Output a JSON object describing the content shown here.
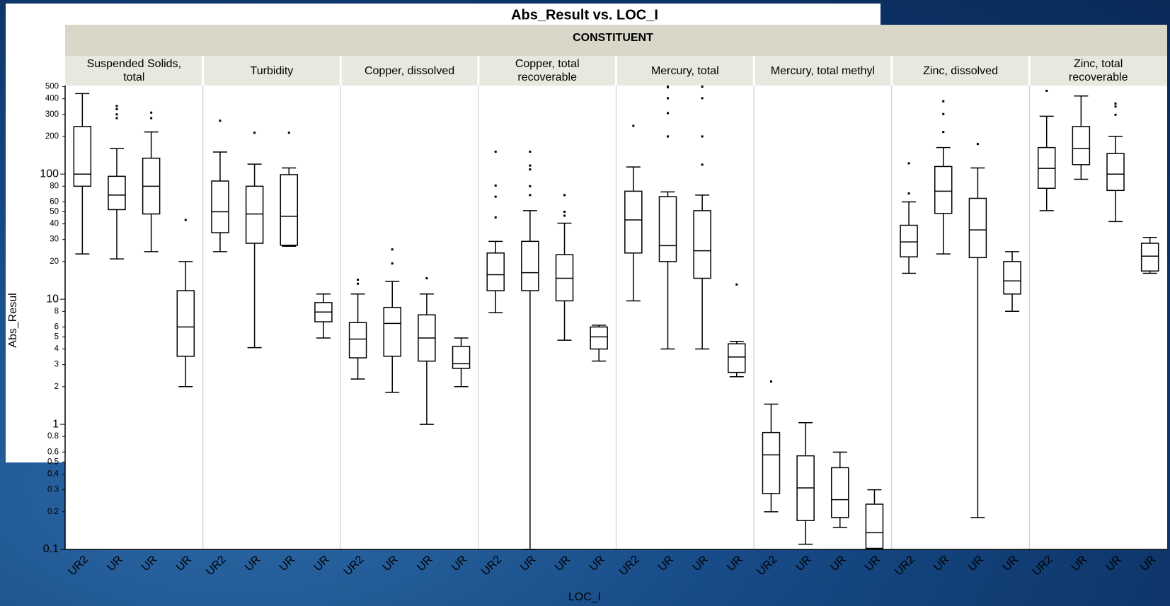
{
  "chart_data": {
    "type": "box",
    "title": "Abs_Result vs. LOC_I",
    "facet_label": "CONSTITUENT",
    "x_label": "LOC_I",
    "y_label": "Abs_Resul",
    "log_scale": true,
    "color": "#000000",
    "ylim": [
      0.1,
      510
    ],
    "yticks": [
      0.1,
      0.2,
      0.3,
      0.4,
      0.5,
      0.6,
      0.8,
      1,
      2,
      3,
      4,
      5,
      6,
      8,
      10,
      20,
      30,
      40,
      50,
      60,
      80,
      100,
      200,
      300,
      400,
      500
    ],
    "panels": [
      {
        "name": "Suspended Solids, total",
        "categories": [
          "UR2",
          "UR",
          "UR",
          "UR"
        ],
        "boxes": [
          {
            "min": 23,
            "q1": 80,
            "median": 100,
            "q3": 240,
            "max": 440,
            "outliers": []
          },
          {
            "min": 21,
            "q1": 52,
            "median": 68,
            "q3": 96,
            "max": 160,
            "outliers": [
              350,
              330,
              300,
              280
            ]
          },
          {
            "min": 24,
            "q1": 48,
            "median": 80,
            "q3": 134,
            "max": 217,
            "outliers": [
              310,
              280
            ]
          },
          {
            "min": 2,
            "q1": 3.5,
            "median": 6,
            "q3": 11.7,
            "max": 20,
            "outliers": [
              43
            ]
          }
        ]
      },
      {
        "name": "Turbidity",
        "categories": [
          "UR2",
          "UR",
          "UR",
          "UR"
        ],
        "boxes": [
          {
            "min": 24,
            "q1": 34,
            "median": 50,
            "q3": 88,
            "max": 150,
            "outliers": [
              267
            ]
          },
          {
            "min": 4.1,
            "q1": 28,
            "median": 48,
            "q3": 80,
            "max": 120,
            "outliers": [
              214
            ]
          },
          {
            "min": 26.5,
            "q1": 27,
            "median": 46,
            "q3": 99,
            "max": 112,
            "outliers": [
              214
            ]
          },
          {
            "min": 4.9,
            "q1": 6.6,
            "median": 7.9,
            "q3": 9.4,
            "max": 11,
            "outliers": []
          }
        ]
      },
      {
        "name": "Copper, dissolved",
        "categories": [
          "UR2",
          "UR",
          "UR",
          "UR"
        ],
        "boxes": [
          {
            "min": 2.3,
            "q1": 3.4,
            "median": 4.8,
            "q3": 6.5,
            "max": 11,
            "outliers": [
              14.3,
              13.3
            ]
          },
          {
            "min": 1.8,
            "q1": 3.5,
            "median": 6.4,
            "q3": 8.6,
            "max": 13.9,
            "outliers": [
              25,
              19.3
            ]
          },
          {
            "min": 1,
            "q1": 3.2,
            "median": 4.9,
            "q3": 7.5,
            "max": 11,
            "outliers": [
              14.7
            ]
          },
          {
            "min": 2,
            "q1": 2.8,
            "median": 3.05,
            "q3": 4.2,
            "max": 4.9,
            "outliers": []
          }
        ]
      },
      {
        "name": "Copper, total recoverable",
        "categories": [
          "UR2",
          "UR",
          "UR",
          "UR"
        ],
        "boxes": [
          {
            "min": 7.8,
            "q1": 11.7,
            "median": 15.7,
            "q3": 23.4,
            "max": 29,
            "outliers": [
              151,
              81,
              66,
              45
            ]
          },
          {
            "min": 0.1,
            "q1": 11.7,
            "median": 16.3,
            "q3": 29,
            "max": 51,
            "outliers": [
              151,
              117,
              109,
              80,
              68
            ]
          },
          {
            "min": 4.7,
            "q1": 9.7,
            "median": 14.7,
            "q3": 22.7,
            "max": 40.5,
            "outliers": [
              68,
              50,
              46.5
            ]
          },
          {
            "min": 3.2,
            "q1": 4,
            "median": 5,
            "q3": 6,
            "max": 6.2,
            "outliers": []
          }
        ]
      },
      {
        "name": "Mercury, total",
        "categories": [
          "UR2",
          "UR",
          "UR",
          "UR"
        ],
        "boxes": [
          {
            "min": 9.7,
            "q1": 23.4,
            "median": 43,
            "q3": 73,
            "max": 114,
            "outliers": [
              243
            ]
          },
          {
            "min": 4,
            "q1": 20,
            "median": 26.8,
            "q3": 66,
            "max": 72,
            "outliers": [
              500,
              495,
              404,
              307,
              200
            ]
          },
          {
            "min": 4,
            "q1": 14.7,
            "median": 24.4,
            "q3": 51,
            "max": 68,
            "outliers": [
              500,
              404,
              200,
              119
            ]
          },
          {
            "min": 2.4,
            "q1": 2.6,
            "median": 3.45,
            "q3": 4.4,
            "max": 4.6,
            "outliers": [
              13.1
            ]
          }
        ]
      },
      {
        "name": "Mercury, total methyl",
        "categories": [
          "UR2",
          "UR",
          "UR",
          "UR"
        ],
        "boxes": [
          {
            "min": 0.2,
            "q1": 0.28,
            "median": 0.57,
            "q3": 0.86,
            "max": 1.45,
            "outliers": [
              2.2
            ]
          },
          {
            "min": 0.11,
            "q1": 0.17,
            "median": 0.31,
            "q3": 0.56,
            "max": 1.03,
            "outliers": []
          },
          {
            "min": 0.15,
            "q1": 0.18,
            "median": 0.25,
            "q3": 0.45,
            "max": 0.6,
            "outliers": []
          },
          {
            "min": 0.1,
            "q1": 0.102,
            "median": 0.136,
            "q3": 0.23,
            "max": 0.3,
            "outliers": []
          }
        ]
      },
      {
        "name": "Zinc, dissolved",
        "categories": [
          "UR2",
          "UR",
          "UR",
          "UR"
        ],
        "boxes": [
          {
            "min": 16.1,
            "q1": 21.8,
            "median": 28.7,
            "q3": 39,
            "max": 60,
            "outliers": [
              122,
              70
            ]
          },
          {
            "min": 23,
            "q1": 48.5,
            "median": 73,
            "q3": 115,
            "max": 163,
            "outliers": [
              382,
              302,
              217
            ]
          },
          {
            "min": 0.18,
            "q1": 21.5,
            "median": 35.8,
            "q3": 64,
            "max": 112,
            "outliers": [
              174
            ]
          },
          {
            "min": 8,
            "q1": 11,
            "median": 14,
            "q3": 20,
            "max": 24,
            "outliers": []
          }
        ]
      },
      {
        "name": "Zinc, total recoverable",
        "categories": [
          "UR2",
          "UR",
          "UR",
          "UR"
        ],
        "boxes": [
          {
            "min": 51,
            "q1": 77,
            "median": 111,
            "q3": 163,
            "max": 290,
            "outliers": [
              463
            ]
          },
          {
            "min": 91,
            "q1": 119,
            "median": 160,
            "q3": 240,
            "max": 421,
            "outliers": []
          },
          {
            "min": 41.7,
            "q1": 74,
            "median": 100,
            "q3": 146,
            "max": 200,
            "outliers": [
              366,
              347,
              298
            ]
          },
          {
            "min": 16.1,
            "q1": 16.8,
            "median": 22.1,
            "q3": 28,
            "max": 31.2,
            "outliers": []
          }
        ]
      }
    ]
  }
}
